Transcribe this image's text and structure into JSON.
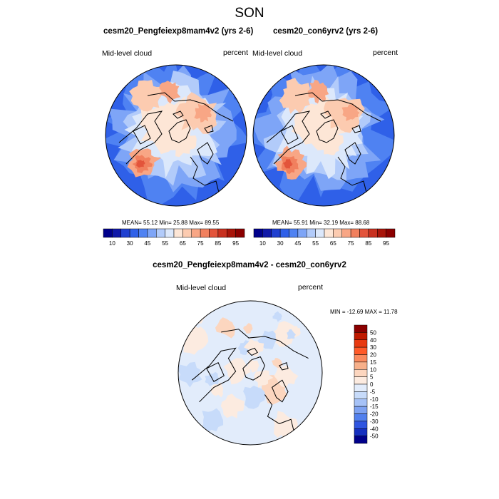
{
  "suptitle": "SON",
  "panels": [
    {
      "title": "cesm20_Pengfeiexp8mam4v2 (yrs 2-6)",
      "left_label": "Mid-level cloud",
      "right_label": "percent",
      "stats": "MEAN=  55.12  Min=  25.88  Max=  89.55",
      "mean": 55.12,
      "min": 25.88,
      "max": 89.55
    },
    {
      "title": "cesm20_con6yrv2 (yrs 2-6)",
      "left_label": "Mid-level cloud",
      "right_label": "percent",
      "stats": "MEAN=  55.91  Min=  32.19  Max=  88.68",
      "mean": 55.91,
      "min": 32.19,
      "max": 88.68
    }
  ],
  "colorbar_top": {
    "colors": [
      "#00008b",
      "#1018a8",
      "#1f3fd0",
      "#2f60e8",
      "#4f82f2",
      "#7ea5f7",
      "#b2cbfa",
      "#dce8fb",
      "#fde6d6",
      "#fccbb0",
      "#f8a685",
      "#f1805e",
      "#e3543b",
      "#c8301f",
      "#a81409",
      "#8b0000"
    ],
    "tick_labels": [
      "10",
      "30",
      "45",
      "55",
      "65",
      "75",
      "85",
      "95"
    ]
  },
  "difference": {
    "title": "cesm20_Pengfeiexp8mam4v2 - cesm20_con6yrv2",
    "left_label": "Mid-level cloud",
    "right_label": "percent",
    "minmax": "MIN = -12.69 MAX =  11.78",
    "min": -12.69,
    "max": 11.78,
    "colorbar": {
      "colors": [
        "#8b0000",
        "#c01a00",
        "#e83a10",
        "#ff5a28",
        "#fa8a5e",
        "#f7b08a",
        "#fcd6bf",
        "#fcebe0",
        "#e2ecfb",
        "#c7dbfa",
        "#a6c2f7",
        "#7ea2f2",
        "#5280ee",
        "#2f55e0",
        "#1530c0",
        "#00008b"
      ],
      "tick_labels": [
        "50",
        "40",
        "30",
        "20",
        "15",
        "10",
        "5",
        "0",
        "-5",
        "-10",
        "-15",
        "-20",
        "-30",
        "-40",
        "-50"
      ]
    }
  }
}
